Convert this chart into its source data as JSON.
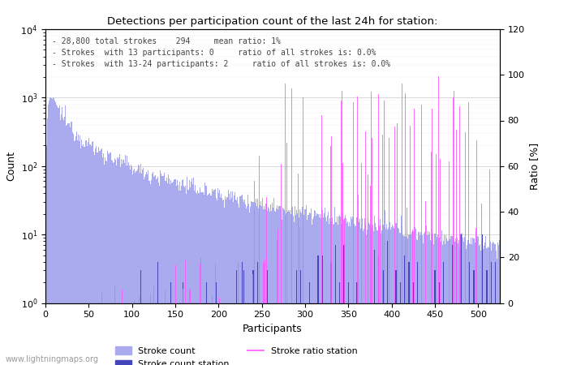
{
  "title": "Detections per participation count of the last 24h for station:",
  "xlabel": "Participants",
  "ylabel_left": "Count",
  "ylabel_right": "Ratio [%]",
  "annotation_lines": [
    "- 28,800 total strokes    294     mean ratio: 1%",
    "- Strokes  with 13 participants: 0     ratio of all strokes is: 0.0%",
    "- Strokes  with 13-24 participants: 2     ratio of all strokes is: 0.0%"
  ],
  "legend_entries": [
    {
      "label": "Stroke count",
      "color": "#aaaaee"
    },
    {
      "label": "Stroke count station",
      "color": "#4444bb"
    },
    {
      "label": "Stroke ratio station",
      "color": "#ff44ff"
    }
  ],
  "bar_color_main": "#aaaaee",
  "bar_color_station": "#4444bb",
  "line_color": "#ff55ff",
  "watermark": "www.lightningmaps.org",
  "xlim": [
    0,
    525
  ],
  "ylim_log_min": 1,
  "ylim_log_max": 10000,
  "ylim_ratio": [
    0,
    120
  ],
  "ratio_ticks": [
    0,
    20,
    40,
    60,
    80,
    100,
    120
  ],
  "x_ticks": [
    0,
    50,
    100,
    150,
    200,
    250,
    300,
    350,
    400,
    450,
    500
  ]
}
